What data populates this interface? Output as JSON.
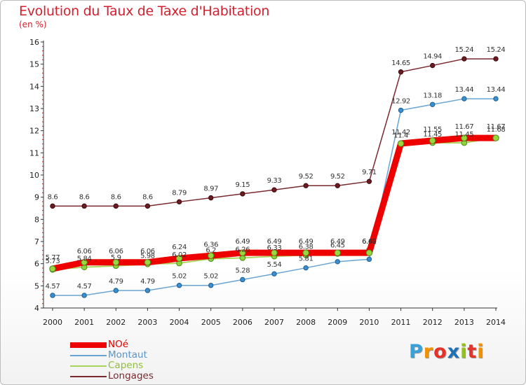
{
  "page": {
    "title": "Evolution du Taux de Taxe d'Habitation",
    "unit_label": "(en %)",
    "logo": {
      "text": "Proxiti",
      "letters": [
        {
          "ch": "P",
          "color": "#3aa0d8"
        },
        {
          "ch": "r",
          "color": "#f39200"
        },
        {
          "ch": "o",
          "color": "#e6332a"
        },
        {
          "ch": "x",
          "color": "#1d71b8"
        },
        {
          "ch": "i",
          "color": "#95c11f"
        },
        {
          "ch": "t",
          "color": "#e6332a"
        },
        {
          "ch": "i",
          "color": "#f39200"
        }
      ]
    }
  },
  "chart_data": {
    "type": "line",
    "title": "Evolution du Taux de Taxe d'Habitation",
    "ylabel": "(en %)",
    "xlabel": "",
    "x": [
      2000,
      2001,
      2002,
      2003,
      2004,
      2005,
      2006,
      2007,
      2008,
      2009,
      2010,
      2011,
      2012,
      2013,
      2014
    ],
    "ylim": [
      4,
      16
    ],
    "yticks": [
      4,
      5,
      6,
      7,
      8,
      9,
      10,
      11,
      12,
      13,
      14,
      15,
      16
    ],
    "grid": false,
    "legend_position": "bottom-left",
    "series": [
      {
        "name": "Longages",
        "color": "#7a2a2f",
        "values": [
          8.6,
          8.6,
          8.6,
          8.6,
          8.79,
          8.97,
          9.15,
          9.33,
          9.52,
          9.52,
          9.71,
          14.65,
          14.94,
          15.24,
          15.24
        ],
        "labels": [
          "8.6",
          "8.6",
          "8.6",
          "8.6",
          "8.79",
          "8.97",
          "9.15",
          "9.33",
          "9.52",
          "9.52",
          "9.71",
          "14.65",
          "14.94",
          "15.24",
          "15.24"
        ]
      },
      {
        "name": "Montaut",
        "color": "#6aa4d2",
        "values": [
          4.57,
          4.57,
          4.79,
          4.79,
          5.02,
          5.02,
          5.28,
          5.54,
          5.81,
          6.09,
          6.2,
          12.92,
          13.18,
          13.44,
          13.44
        ],
        "labels": [
          "4.57",
          "4.57",
          "4.79",
          "4.79",
          "5.02",
          "5.02",
          "5.28",
          "5.54",
          "5.81",
          "",
          "",
          "12.92",
          "13.18",
          "13.44",
          "13.44"
        ]
      },
      {
        "name": "Capens",
        "color": "#a8d45a",
        "values": [
          5.73,
          5.84,
          5.9,
          5.98,
          6.02,
          6.22,
          6.26,
          6.33,
          6.38,
          6.45,
          6.62,
          11.4,
          11.45,
          11.45,
          11.68
        ],
        "labels": [
          "5.73",
          "5.84",
          "5.9",
          "5.98",
          "6.02",
          "6.2",
          "6.26",
          "6.33",
          "6.38",
          "6.45",
          "6.62",
          "11.4",
          "11.45",
          "11.45",
          "11.68"
        ]
      },
      {
        "name": "NOé",
        "color": "#ee0000",
        "values": [
          5.77,
          6.06,
          6.06,
          6.06,
          6.24,
          6.36,
          6.49,
          6.49,
          6.49,
          6.49,
          6.49,
          11.42,
          11.55,
          11.67,
          11.67
        ],
        "labels": [
          "5.77",
          "6.06",
          "6.06",
          "6.06",
          "6.24",
          "6.36",
          "6.49",
          "6.49",
          "6.49",
          "6.49",
          "6.49",
          "11.42",
          "11.55",
          "11.67",
          "11.67"
        ]
      }
    ]
  }
}
